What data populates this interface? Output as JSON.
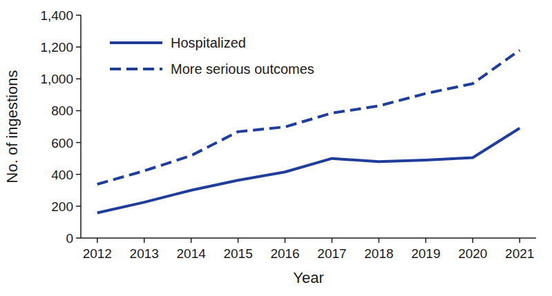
{
  "chart_data": {
    "type": "line",
    "x_label": "Year",
    "y_label": "No. of ingestions",
    "x": [
      2012,
      2013,
      2014,
      2015,
      2016,
      2017,
      2018,
      2019,
      2020,
      2021
    ],
    "series": [
      {
        "name": "Hospitalized",
        "color": "#1f3d99",
        "line_style": "solid",
        "values": [
          158,
          225,
          300,
          363,
          415,
          500,
          480,
          490,
          505,
          690
        ]
      },
      {
        "name": "More serious outcomes",
        "color": "#1f3d99",
        "line_style": "dashed",
        "values": [
          338,
          422,
          518,
          668,
          698,
          785,
          830,
          908,
          970,
          1180
        ]
      }
    ],
    "xlim": [
      2011.65,
      2021.35
    ],
    "xticks": [
      2012,
      2013,
      2014,
      2015,
      2016,
      2017,
      2018,
      2019,
      2020,
      2021
    ],
    "ylim": [
      0,
      1400
    ],
    "yticks": [
      0,
      200,
      400,
      600,
      800,
      {
        "value": 1000,
        "label": "1,000"
      },
      {
        "value": 1200,
        "label": "1,200"
      },
      {
        "value": 1400,
        "label": "1,400"
      }
    ],
    "grid": false,
    "legend": "upper left"
  }
}
